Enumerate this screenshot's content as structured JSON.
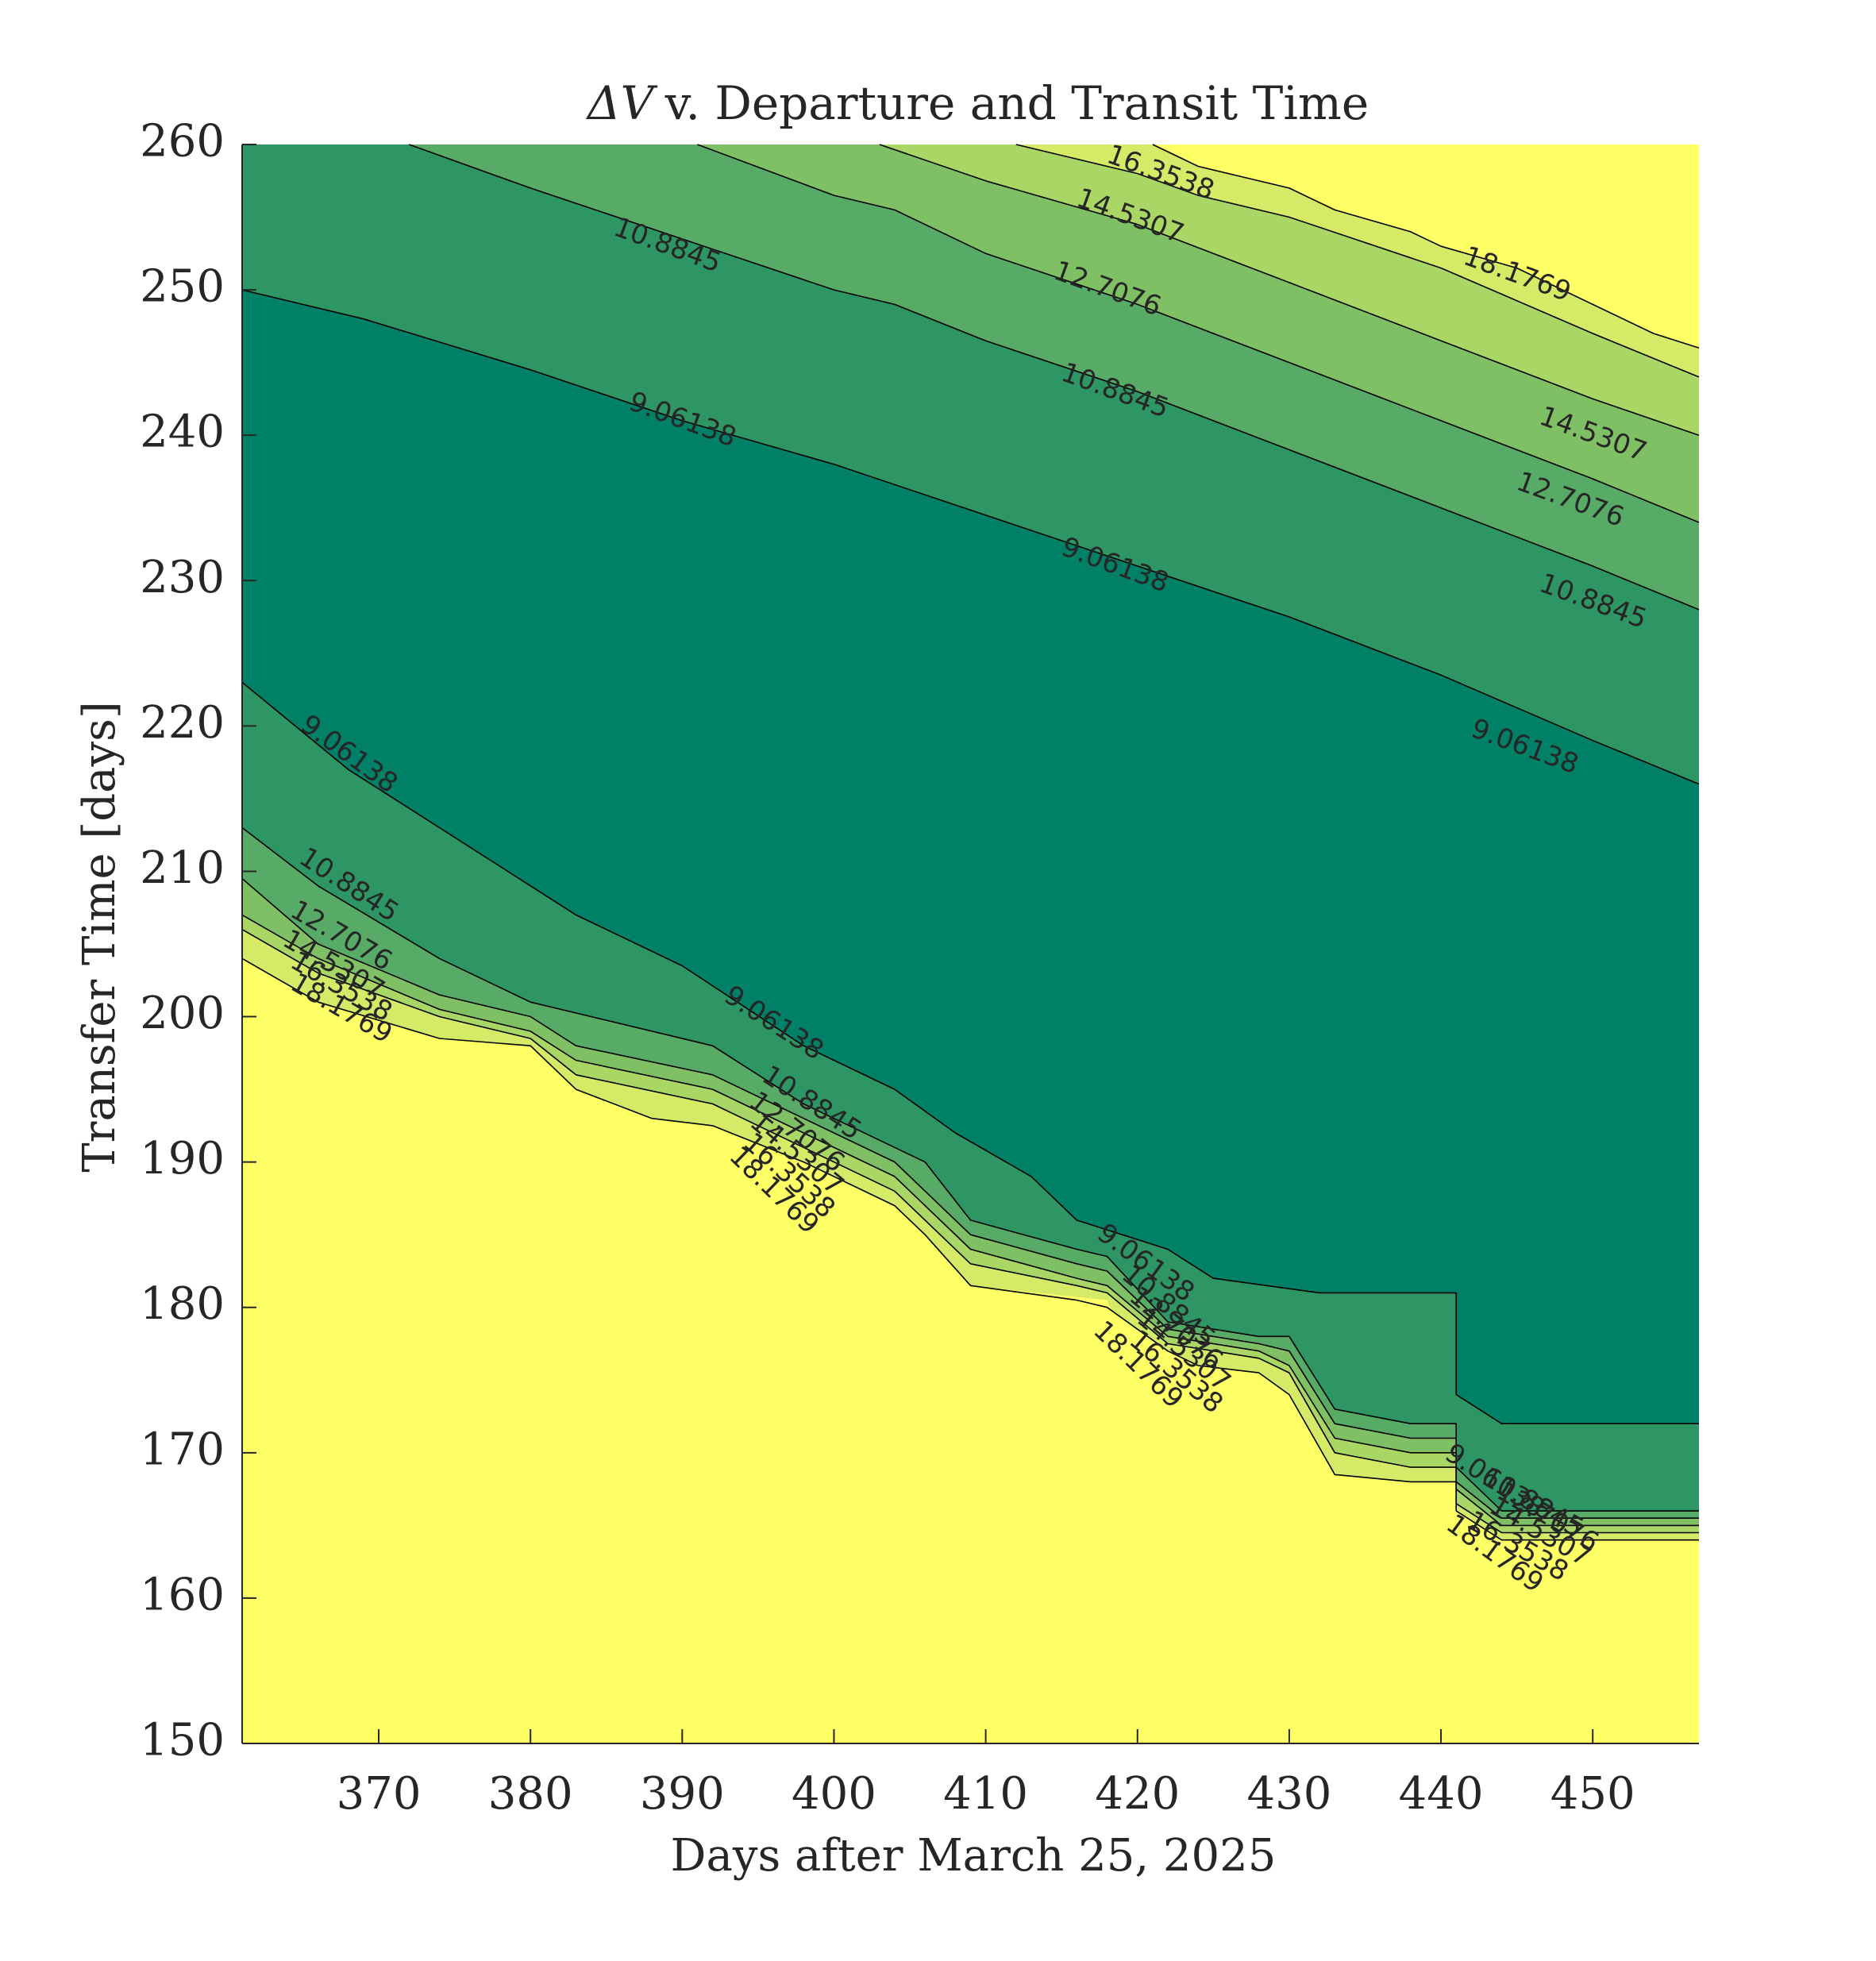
{
  "chart_data": {
    "type": "contour",
    "title": "ΔV v. Departure and Transit Time",
    "title_prefix": "ΔV",
    "title_rest": "v. Departure and Transit Time",
    "xlabel": "Days after March 25, 2025",
    "ylabel": "Transfer Time [days]",
    "xlim": [
      361,
      457
    ],
    "ylim": [
      150,
      260
    ],
    "xticks": [
      370,
      380,
      390,
      400,
      410,
      420,
      430,
      440,
      450
    ],
    "yticks": [
      150,
      160,
      170,
      180,
      190,
      200,
      210,
      220,
      230,
      240,
      250,
      260
    ],
    "levels": [
      9.06138,
      10.8845,
      12.7076,
      14.5307,
      16.3538,
      18.1769
    ],
    "level_labels": [
      "9.06138",
      "10.8845",
      "12.7076",
      "14.5307",
      "16.3538",
      "18.1769"
    ],
    "colors": {
      "band_0": "#008066",
      "band_1": "#2d9664",
      "band_2": "#57ab66",
      "band_3": "#80c064",
      "band_4": "#aad666",
      "band_5": "#d5ea66",
      "band_6": "#ffff66",
      "contour_line": "#000000"
    },
    "upper_contours": [
      {
        "level": "9.06138",
        "points": [
          [
            361,
            250
          ],
          [
            369,
            248
          ],
          [
            380,
            244.5
          ],
          [
            390,
            241
          ],
          [
            400,
            238
          ],
          [
            410,
            234.5
          ],
          [
            420,
            231
          ],
          [
            430,
            227.5
          ],
          [
            440,
            223.5
          ],
          [
            450,
            219
          ],
          [
            457,
            216
          ]
        ]
      },
      {
        "level": "10.8845",
        "points": [
          [
            372,
            260
          ],
          [
            380,
            257
          ],
          [
            390,
            253.5
          ],
          [
            400,
            250
          ],
          [
            404,
            249
          ],
          [
            410,
            246.5
          ],
          [
            420,
            243
          ],
          [
            430,
            239
          ],
          [
            440,
            235
          ],
          [
            450,
            231
          ],
          [
            457,
            228
          ]
        ]
      },
      {
        "level": "12.7076",
        "points": [
          [
            391,
            260
          ],
          [
            400,
            256.5
          ],
          [
            404,
            255.5
          ],
          [
            410,
            252.5
          ],
          [
            420,
            249
          ],
          [
            430,
            245
          ],
          [
            440,
            241
          ],
          [
            450,
            237
          ],
          [
            457,
            234
          ]
        ]
      },
      {
        "level": "14.5307",
        "points": [
          [
            403,
            260
          ],
          [
            410,
            257.5
          ],
          [
            420,
            254.5
          ],
          [
            430,
            250.5
          ],
          [
            440,
            246.5
          ],
          [
            450,
            242.5
          ],
          [
            457,
            240
          ]
        ]
      },
      {
        "level": "16.3538",
        "points": [
          [
            412,
            260
          ],
          [
            420,
            258
          ],
          [
            424,
            256.5
          ],
          [
            430,
            255
          ],
          [
            440,
            251.5
          ],
          [
            450,
            247
          ],
          [
            457,
            244
          ]
        ]
      },
      {
        "level": "18.1769",
        "points": [
          [
            421,
            260
          ],
          [
            424,
            258.5
          ],
          [
            430,
            257
          ],
          [
            433,
            255.5
          ],
          [
            438,
            254
          ],
          [
            440,
            253
          ],
          [
            445,
            251.5
          ],
          [
            450,
            249
          ],
          [
            454,
            247
          ],
          [
            457,
            246
          ]
        ]
      }
    ],
    "lower_contours": [
      {
        "level": "9.06138",
        "points": [
          [
            361,
            223
          ],
          [
            368,
            217
          ],
          [
            374,
            213
          ],
          [
            380,
            209
          ],
          [
            383,
            207
          ],
          [
            390,
            203.5
          ],
          [
            398,
            198
          ],
          [
            404,
            195
          ],
          [
            408,
            192
          ],
          [
            413,
            189
          ],
          [
            416,
            186
          ],
          [
            422,
            184
          ],
          [
            425,
            182
          ],
          [
            432,
            181
          ],
          [
            441,
            181
          ],
          [
            441,
            174
          ],
          [
            444,
            172
          ],
          [
            450,
            172
          ],
          [
            457,
            172
          ]
        ]
      },
      {
        "level": "10.8845",
        "points": [
          [
            361,
            213
          ],
          [
            366,
            209
          ],
          [
            374,
            204
          ],
          [
            380,
            201
          ],
          [
            392,
            198
          ],
          [
            398,
            194
          ],
          [
            404,
            191
          ],
          [
            406,
            190
          ],
          [
            409,
            186
          ],
          [
            416,
            184
          ],
          [
            418,
            183.5
          ],
          [
            422,
            179
          ],
          [
            428,
            178
          ],
          [
            430,
            178
          ],
          [
            433,
            173
          ],
          [
            438,
            172
          ],
          [
            441,
            172
          ],
          [
            441,
            169
          ],
          [
            444,
            166
          ],
          [
            457,
            166
          ]
        ]
      },
      {
        "level": "12.7076",
        "points": [
          [
            361,
            209.5
          ],
          [
            366,
            205
          ],
          [
            374,
            201.5
          ],
          [
            380,
            200
          ],
          [
            383,
            198
          ],
          [
            392,
            196
          ],
          [
            398,
            193
          ],
          [
            404,
            190
          ],
          [
            406,
            188
          ],
          [
            409,
            185
          ],
          [
            416,
            183
          ],
          [
            418,
            182.5
          ],
          [
            422,
            178.5
          ],
          [
            428,
            177.5
          ],
          [
            430,
            177
          ],
          [
            433,
            172
          ],
          [
            438,
            171
          ],
          [
            441,
            171
          ],
          [
            441,
            168
          ],
          [
            444,
            165.5
          ],
          [
            457,
            165.5
          ]
        ]
      },
      {
        "level": "14.5307",
        "points": [
          [
            361,
            207
          ],
          [
            366,
            204
          ],
          [
            374,
            200.5
          ],
          [
            380,
            199
          ],
          [
            383,
            197
          ],
          [
            392,
            195
          ],
          [
            398,
            192
          ],
          [
            404,
            189
          ],
          [
            406,
            187
          ],
          [
            409,
            184
          ],
          [
            416,
            182
          ],
          [
            418,
            181.5
          ],
          [
            422,
            178
          ],
          [
            428,
            177
          ],
          [
            430,
            176
          ],
          [
            433,
            171
          ],
          [
            438,
            170
          ],
          [
            441,
            170
          ],
          [
            441,
            167.5
          ],
          [
            444,
            165
          ],
          [
            457,
            165
          ]
        ]
      },
      {
        "level": "16.3538",
        "points": [
          [
            361,
            206
          ],
          [
            366,
            203
          ],
          [
            374,
            200
          ],
          [
            380,
            198.5
          ],
          [
            383,
            196
          ],
          [
            392,
            194
          ],
          [
            398,
            191
          ],
          [
            404,
            188
          ],
          [
            406,
            186
          ],
          [
            409,
            183
          ],
          [
            416,
            181.5
          ],
          [
            418,
            181
          ],
          [
            422,
            177.5
          ],
          [
            428,
            176.5
          ],
          [
            430,
            175.5
          ],
          [
            433,
            170
          ],
          [
            438,
            169
          ],
          [
            441,
            169
          ],
          [
            441,
            166.5
          ],
          [
            444,
            164.5
          ],
          [
            457,
            164.5
          ]
        ]
      },
      {
        "level": "18.1769",
        "points": [
          [
            361,
            204
          ],
          [
            366,
            201
          ],
          [
            374,
            198.5
          ],
          [
            380,
            198
          ],
          [
            383,
            195
          ],
          [
            388,
            193
          ],
          [
            392,
            192.5
          ],
          [
            398,
            190
          ],
          [
            404,
            187
          ],
          [
            406,
            185
          ],
          [
            409,
            181.5
          ],
          [
            416,
            180.5
          ],
          [
            418,
            180
          ],
          [
            422,
            177
          ],
          [
            424,
            176
          ],
          [
            428,
            175.5
          ],
          [
            430,
            174
          ],
          [
            433,
            168.5
          ],
          [
            438,
            168
          ],
          [
            441,
            168
          ],
          [
            441,
            166
          ],
          [
            444,
            164
          ],
          [
            457,
            164
          ]
        ]
      }
    ],
    "bottom_yellow_boundary": [
      [
        361,
        203.5
      ],
      [
        372,
        198
      ],
      [
        379,
        197.5
      ],
      [
        380,
        195
      ],
      [
        383,
        192
      ],
      [
        388,
        191.5
      ],
      [
        393,
        191.5
      ],
      [
        398,
        188
      ],
      [
        404,
        186
      ],
      [
        406,
        182
      ],
      [
        409,
        181.5
      ],
      [
        418,
        180.5
      ],
      [
        419,
        178
      ],
      [
        424,
        175
      ],
      [
        430,
        174
      ],
      [
        431,
        170
      ],
      [
        434,
        168
      ],
      [
        441,
        168
      ],
      [
        441,
        165
      ],
      [
        442,
        163
      ],
      [
        445,
        162.5
      ],
      [
        457,
        162.5
      ]
    ],
    "contour_labels": [
      {
        "text": "16.3538",
        "x": 421.5,
        "y": 258,
        "angle": 20
      },
      {
        "text": "14.5307",
        "x": 419.5,
        "y": 255,
        "angle": 20
      },
      {
        "text": "12.7076",
        "x": 418,
        "y": 250,
        "angle": 20
      },
      {
        "text": "10.8845",
        "x": 389,
        "y": 253,
        "angle": 20
      },
      {
        "text": "18.1769",
        "x": 445,
        "y": 251,
        "angle": 20
      },
      {
        "text": "9.06138",
        "x": 390,
        "y": 241,
        "angle": 20
      },
      {
        "text": "10.8845",
        "x": 418.5,
        "y": 243,
        "angle": 20
      },
      {
        "text": "14.5307",
        "x": 450,
        "y": 240,
        "angle": 20
      },
      {
        "text": "12.7076",
        "x": 448.5,
        "y": 235.5,
        "angle": 20
      },
      {
        "text": "9.06138",
        "x": 418.5,
        "y": 231,
        "angle": 20
      },
      {
        "text": "10.8845",
        "x": 450,
        "y": 228.5,
        "angle": 20
      },
      {
        "text": "9.06138",
        "x": 445.5,
        "y": 218.5,
        "angle": 20
      },
      {
        "text": "9.06138",
        "x": 368,
        "y": 218,
        "angle": 36
      },
      {
        "text": "10.8845",
        "x": 368,
        "y": 209,
        "angle": 33
      },
      {
        "text": "12.7076",
        "x": 367.5,
        "y": 205.5,
        "angle": 30
      },
      {
        "text": "14.5307",
        "x": 367,
        "y": 203.5,
        "angle": 30
      },
      {
        "text": "16.3538",
        "x": 367.5,
        "y": 202,
        "angle": 30
      },
      {
        "text": "18.1769",
        "x": 367.5,
        "y": 200.5,
        "angle": 30
      },
      {
        "text": "9.06138",
        "x": 396,
        "y": 199.5,
        "angle": 33
      },
      {
        "text": "10.8845",
        "x": 398.5,
        "y": 194,
        "angle": 33
      },
      {
        "text": "12.7076",
        "x": 397.5,
        "y": 192,
        "angle": 38
      },
      {
        "text": "14.5307",
        "x": 397.5,
        "y": 190.5,
        "angle": 40
      },
      {
        "text": "16.3538",
        "x": 397,
        "y": 189,
        "angle": 42
      },
      {
        "text": "18.1769",
        "x": 396,
        "y": 188,
        "angle": 44
      },
      {
        "text": "9.06138",
        "x": 420.5,
        "y": 183,
        "angle": 36
      },
      {
        "text": "10.8845",
        "x": 422,
        "y": 180,
        "angle": 40
      },
      {
        "text": "12.7076",
        "x": 422.5,
        "y": 178.5,
        "angle": 40
      },
      {
        "text": "14.5307",
        "x": 423,
        "y": 177,
        "angle": 40
      },
      {
        "text": "16.3538",
        "x": 422.5,
        "y": 175.5,
        "angle": 40
      },
      {
        "text": "18.1769",
        "x": 420,
        "y": 176,
        "angle": 44
      },
      {
        "text": "9.06138",
        "x": 443.5,
        "y": 168,
        "angle": 33
      },
      {
        "text": "10.8845",
        "x": 446,
        "y": 166.5,
        "angle": 30
      },
      {
        "text": "12.7076",
        "x": 447,
        "y": 165.5,
        "angle": 30
      },
      {
        "text": "14.5307",
        "x": 446.5,
        "y": 164.5,
        "angle": 30
      },
      {
        "text": "16.3538",
        "x": 445,
        "y": 163.5,
        "angle": 30
      },
      {
        "text": "18.1769",
        "x": 443.5,
        "y": 163,
        "angle": 36
      }
    ],
    "grid": false,
    "colorbar": false
  }
}
